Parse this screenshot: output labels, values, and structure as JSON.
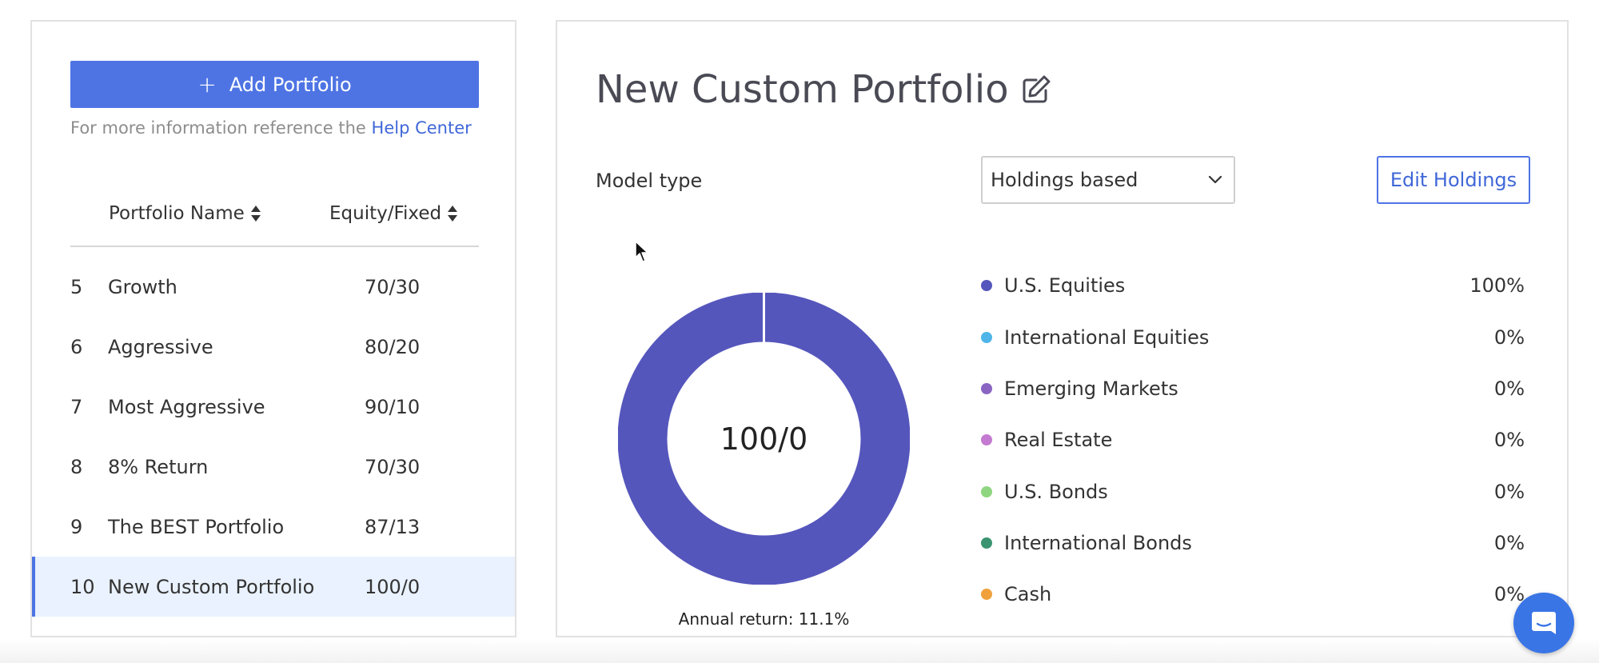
{
  "left_panel": {
    "add_button_label": "Add Portfolio",
    "help_text": "For more information reference the",
    "help_link": "Help Center",
    "columns": {
      "name": "Portfolio Name",
      "equity": "Equity/Fixed"
    },
    "rows": [
      {
        "num": "5",
        "name": "Growth",
        "equity": "70/30"
      },
      {
        "num": "6",
        "name": "Aggressive",
        "equity": "80/20"
      },
      {
        "num": "7",
        "name": "Most Aggressive",
        "equity": "90/10"
      },
      {
        "num": "8",
        "name": "8% Return",
        "equity": "70/30"
      },
      {
        "num": "9",
        "name": "The BEST Portfolio",
        "equity": "87/13"
      },
      {
        "num": "10",
        "name": "New Custom Portfolio",
        "equity": "100/0",
        "selected": true
      }
    ]
  },
  "right_panel": {
    "title": "New Custom Portfolio",
    "model_type_label": "Model type",
    "model_type_value": "Holdings based",
    "edit_holdings_label": "Edit Holdings",
    "donut_center": "100/0",
    "annual_return": "Annual return: 11.1%",
    "allocations": [
      {
        "name": "U.S. Equities",
        "value": "100%",
        "percent": 100,
        "color": "#5556bc"
      },
      {
        "name": "International Equities",
        "value": "0%",
        "percent": 0,
        "color": "#4fb5e8"
      },
      {
        "name": "Emerging Markets",
        "value": "0%",
        "percent": 0,
        "color": "#8a65c2"
      },
      {
        "name": "Real Estate",
        "value": "0%",
        "percent": 0,
        "color": "#c57ad1"
      },
      {
        "name": "U.S. Bonds",
        "value": "0%",
        "percent": 0,
        "color": "#8ed67f"
      },
      {
        "name": "International Bonds",
        "value": "0%",
        "percent": 0,
        "color": "#3a9470"
      },
      {
        "name": "Cash",
        "value": "0%",
        "percent": 0,
        "color": "#f0a13c"
      }
    ]
  },
  "colors": {
    "accent": "#4e74e4",
    "selected_row_bg": "#e9f2fe",
    "donut_fill": "#5556bc"
  }
}
